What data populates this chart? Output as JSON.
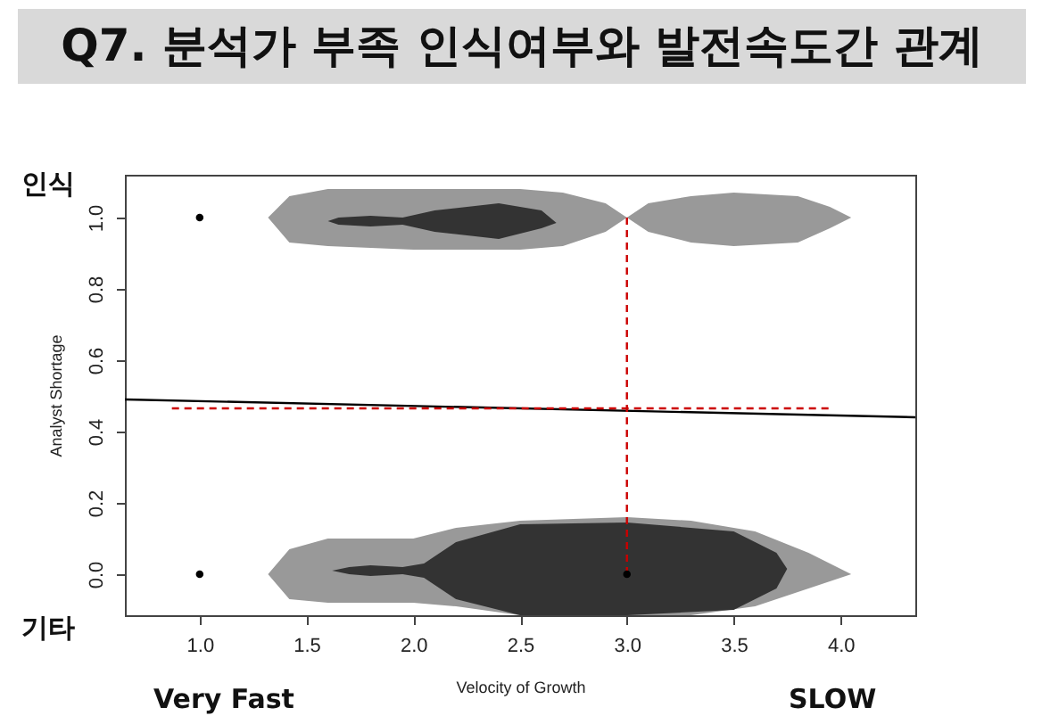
{
  "chart_data": {
    "type": "scatter",
    "title": "Q7. 분석가 부족 인식여부와 발전속도간 관계",
    "xlabel": "Velocity of Growth",
    "ylabel": "Analyst Shortage",
    "annotations": [
      "인식",
      "기타",
      "Very Fast",
      "SLOW"
    ],
    "xlim": [
      0.65,
      4.35
    ],
    "ylim": [
      -0.115,
      1.12
    ],
    "xticks": [
      {
        "value": 1,
        "label": "1.0"
      },
      {
        "value": 1.5,
        "label": "1.5"
      },
      {
        "value": 2,
        "label": "2.0"
      },
      {
        "value": 2.5,
        "label": "2.5"
      },
      {
        "value": 3,
        "label": "3.0"
      },
      {
        "value": 3.5,
        "label": "3.5"
      },
      {
        "value": 4,
        "label": "4.0"
      }
    ],
    "yticks": [
      {
        "value": 0,
        "label": "0.0"
      },
      {
        "value": 0.2,
        "label": "0.2"
      },
      {
        "value": 0.4,
        "label": "0.4"
      },
      {
        "value": 0.6,
        "label": "0.6"
      },
      {
        "value": 0.8,
        "label": "0.8"
      },
      {
        "value": 1,
        "label": "1.0"
      }
    ],
    "grid": false,
    "series": [
      {
        "type": "line",
        "color": "#999999",
        "x": [
          1.32,
          1.42,
          1.6,
          2.0,
          2.5,
          2.7,
          2.9,
          3.0,
          3.1,
          3.3,
          3.5,
          3.8,
          3.95,
          4.05
        ],
        "values": [
          null,
          null,
          null,
          null,
          null,
          null,
          null,
          null,
          null,
          null,
          null,
          null,
          null,
          null
        ],
        "upper": [
          1.0,
          1.06,
          1.08,
          1.08,
          1.08,
          1.07,
          1.04,
          1.0,
          1.04,
          1.06,
          1.07,
          1.06,
          1.03,
          1.0
        ],
        "lower": [
          1.0,
          0.93,
          0.92,
          0.91,
          0.91,
          0.92,
          0.96,
          1.0,
          0.96,
          0.93,
          0.92,
          0.93,
          0.97,
          1.0
        ]
      },
      {
        "type": "line",
        "color": "#999999",
        "x": [
          1.32,
          1.42,
          1.6,
          2.0,
          2.2,
          2.5,
          3.0,
          3.3,
          3.6,
          3.85,
          4.05
        ],
        "values": [
          null,
          null,
          null,
          null,
          null,
          null,
          null,
          null,
          null,
          null,
          null
        ],
        "upper": [
          0,
          0.07,
          0.1,
          0.1,
          0.13,
          0.15,
          0.16,
          0.15,
          0.12,
          0.06,
          0
        ],
        "lower": [
          0,
          -0.07,
          -0.08,
          -0.08,
          -0.09,
          -0.115,
          -0.115,
          -0.115,
          -0.09,
          -0.04,
          0
        ]
      },
      {
        "type": "line",
        "color": "#333333",
        "x": [
          1.6,
          1.65,
          1.8,
          1.95,
          2.1,
          2.4,
          2.6,
          2.67
        ],
        "values": [
          null,
          null,
          null,
          null,
          null,
          null,
          null,
          null
        ],
        "upper": [
          0.99,
          1.0,
          1.005,
          1.0,
          1.02,
          1.04,
          1.02,
          0.985
        ],
        "lower": [
          0.99,
          0.98,
          0.975,
          0.98,
          0.96,
          0.94,
          0.97,
          0.985
        ]
      },
      {
        "type": "line",
        "color": "#333333",
        "x": [
          1.62,
          1.7,
          1.8,
          1.95,
          2.05,
          2.2,
          2.5,
          3.0,
          3.5,
          3.7,
          3.75
        ],
        "values": [
          null,
          null,
          null,
          null,
          null,
          null,
          null,
          null,
          null,
          null,
          null
        ],
        "upper": [
          0.01,
          0.02,
          0.025,
          0.02,
          0.03,
          0.09,
          0.14,
          0.145,
          0.12,
          0.06,
          0.015
        ],
        "lower": [
          0.01,
          0.0,
          -0.005,
          0.0,
          -0.01,
          -0.07,
          -0.115,
          -0.115,
          -0.1,
          -0.04,
          0.015
        ]
      },
      {
        "type": "line",
        "color": "#000000",
        "line_style": "solid",
        "x": [
          0.65,
          4.35
        ],
        "values": [
          0.49,
          0.44
        ]
      },
      {
        "type": "line",
        "color": "#cc0000",
        "line_style": "dashed",
        "x": [
          0.87,
          3.95
        ],
        "values": [
          0.465,
          0.465
        ]
      },
      {
        "type": "line",
        "color": "#cc0000",
        "line_style": "dashed",
        "x": [
          3.0,
          3.0
        ],
        "values": [
          0.0,
          1.0
        ]
      },
      {
        "color": "#000000",
        "marker": "circle",
        "x": [
          1,
          1,
          3
        ],
        "values": [
          1,
          0,
          0
        ]
      }
    ]
  }
}
